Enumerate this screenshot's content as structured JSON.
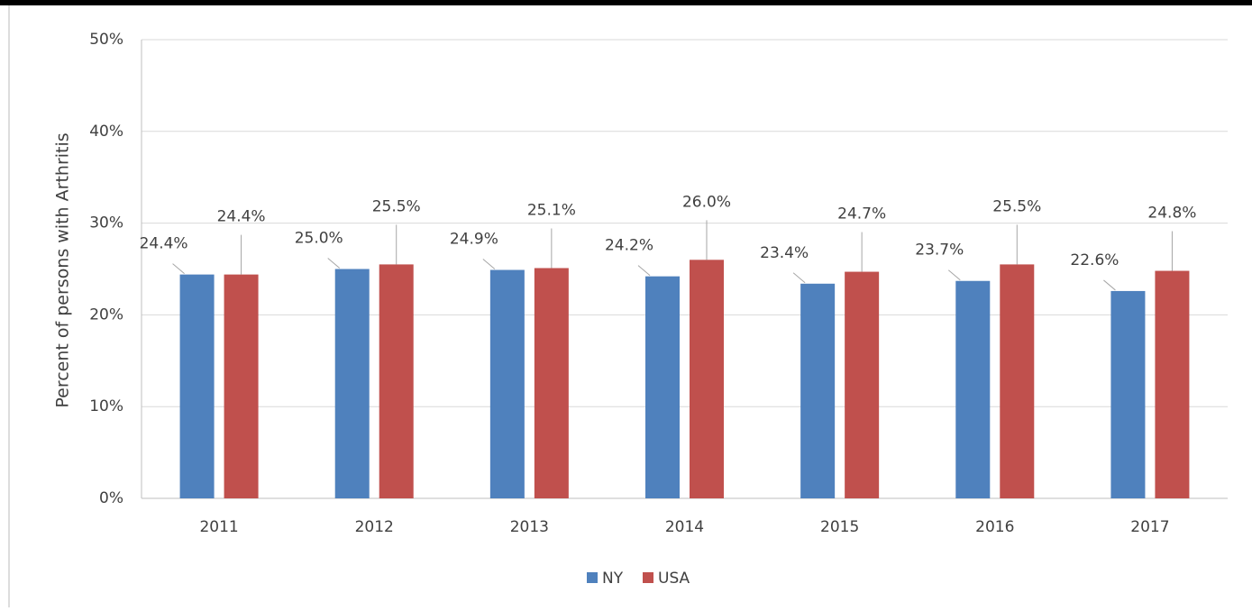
{
  "chart_data": {
    "type": "bar",
    "y_axis_label": "Percent of persons with Arthritis",
    "categories": [
      "2011",
      "2012",
      "2013",
      "2014",
      "2015",
      "2016",
      "2017"
    ],
    "series": [
      {
        "name": "NY",
        "color": "#4f81bd",
        "values": [
          24.4,
          25.0,
          24.9,
          24.2,
          23.4,
          23.7,
          22.6
        ],
        "value_labels": [
          "24.4%",
          "25.0%",
          "24.9%",
          "24.2%",
          "23.4%",
          "23.7%",
          "22.6%"
        ]
      },
      {
        "name": "USA",
        "color": "#c0504d",
        "values": [
          24.4,
          25.5,
          25.1,
          26.0,
          24.7,
          25.5,
          24.8
        ],
        "value_labels": [
          "24.4%",
          "25.5%",
          "25.1%",
          "26.0%",
          "24.7%",
          "25.5%",
          "24.8%"
        ]
      }
    ],
    "ylim": [
      0,
      50
    ],
    "yticks": [
      {
        "value": 0,
        "label": "0%"
      },
      {
        "value": 10,
        "label": "10%"
      },
      {
        "value": 20,
        "label": "20%"
      },
      {
        "value": 30,
        "label": "30%"
      },
      {
        "value": 40,
        "label": "40%"
      },
      {
        "value": 50,
        "label": "50%"
      }
    ],
    "grid": true,
    "legend": "bottom"
  }
}
